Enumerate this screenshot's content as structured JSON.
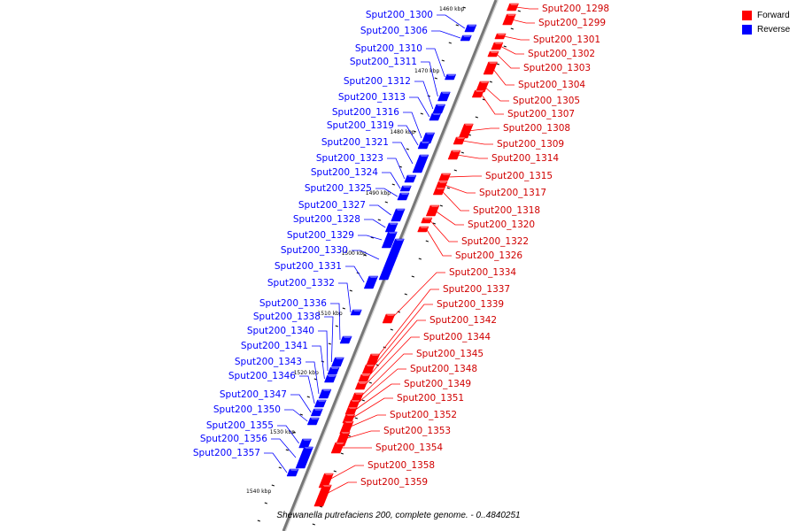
{
  "legend": [
    {
      "label": "Forward",
      "color": "#ff0000"
    },
    {
      "label": "Reverse",
      "color": "#0000ff"
    }
  ],
  "caption": "Shewanella putrefaciens 200, complete genome. - 0..4840251",
  "colors": {
    "forward": "#ff0000",
    "reverse": "#0000ff",
    "backbone": "#777777",
    "ticks": "#000000"
  },
  "kbp_ticks": [
    "1460 kbp",
    "1470 kbp",
    "1480 kbp",
    "1490 kbp",
    "1500 kbp",
    "1510 kbp",
    "1520 kbp",
    "1530 kbp",
    "1540 kbp"
  ],
  "reverse_genes": [
    "Sput200_1300",
    "Sput200_1306",
    "Sput200_1310",
    "Sput200_1311",
    "Sput200_1312",
    "Sput200_1313",
    "Sput200_1316",
    "Sput200_1319",
    "Sput200_1321",
    "Sput200_1323",
    "Sput200_1324",
    "Sput200_1325",
    "Sput200_1327",
    "Sput200_1328",
    "Sput200_1329",
    "Sput200_1330",
    "Sput200_1331",
    "Sput200_1332",
    "Sput200_1336",
    "Sput200_1338",
    "Sput200_1340",
    "Sput200_1341",
    "Sput200_1343",
    "Sput200_1346",
    "Sput200_1347",
    "Sput200_1350",
    "Sput200_1355",
    "Sput200_1356",
    "Sput200_1357"
  ],
  "forward_genes": [
    "Sput200_1298",
    "Sput200_1299",
    "Sput200_1301",
    "Sput200_1302",
    "Sput200_1303",
    "Sput200_1304",
    "Sput200_1305",
    "Sput200_1307",
    "Sput200_1308",
    "Sput200_1309",
    "Sput200_1314",
    "Sput200_1315",
    "Sput200_1317",
    "Sput200_1318",
    "Sput200_1320",
    "Sput200_1322",
    "Sput200_1326",
    "Sput200_1334",
    "Sput200_1337",
    "Sput200_1339",
    "Sput200_1342",
    "Sput200_1344",
    "Sput200_1345",
    "Sput200_1348",
    "Sput200_1349",
    "Sput200_1351",
    "Sput200_1352",
    "Sput200_1353",
    "Sput200_1354",
    "Sput200_1358",
    "Sput200_1359"
  ]
}
